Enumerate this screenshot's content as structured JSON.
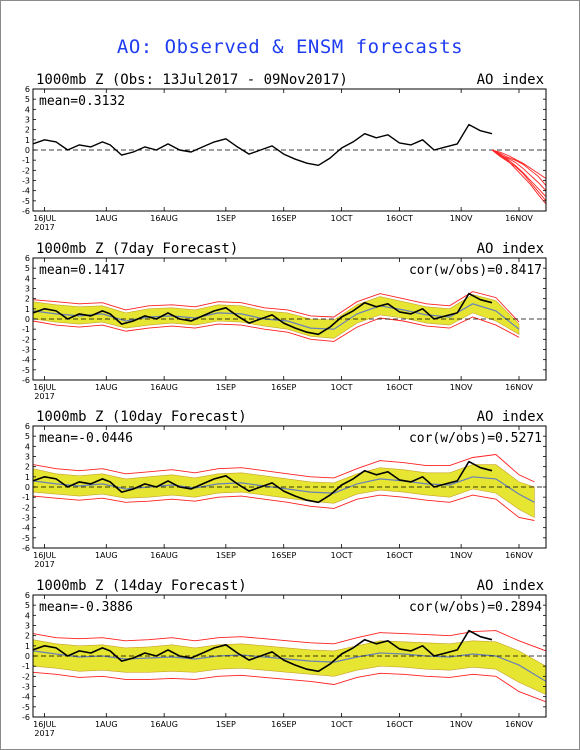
{
  "title": "AO: Observed & ENSM forecasts",
  "colors": {
    "title": "#1f3df0",
    "observed": "#000000",
    "ensemble_member": "#ff2020",
    "ensemble_mean": "#6a80b8",
    "spread": "#e4e428",
    "spread_outline": "#c8a020",
    "zero_line": "#000000"
  },
  "panels": [
    {
      "title": "1000mb Z (Obs: 13Jul2017 - 09Nov2017)",
      "index_label": "AO index",
      "mean_label": "mean=0.3132",
      "cor_label": ""
    },
    {
      "title": "1000mb Z (7day Forecast)",
      "index_label": "AO index",
      "mean_label": "mean=0.1417",
      "cor_label": "cor(w/obs)=0.8417"
    },
    {
      "title": "1000mb Z (10day Forecast)",
      "index_label": "AO index",
      "mean_label": "mean=-0.0446",
      "cor_label": "cor(w/obs)=0.5271"
    },
    {
      "title": "1000mb Z (14day Forecast)",
      "index_label": "AO index",
      "mean_label": "mean=-0.3886",
      "cor_label": "cor(w/obs)=0.2894"
    }
  ],
  "chart_data": {
    "type": "line",
    "ylim": [
      -6,
      6
    ],
    "yticks": [
      "6",
      "5",
      "4",
      "3",
      "2",
      "1",
      "0",
      "-1",
      "-2",
      "-3",
      "-4",
      "-5",
      "-6"
    ],
    "x_tick_labels": [
      "16JUL",
      "1AUG",
      "16AUG",
      "1SEP",
      "16SEP",
      "1OCT",
      "16OCT",
      "1NOV",
      "16NOV"
    ],
    "x_year_label": "2017",
    "grid": false,
    "zero_line": true,
    "x_start": "2017-07-13",
    "x_end": "2017-11-23",
    "observed": {
      "x": [
        "2017-07-13",
        "2017-07-16",
        "2017-07-19",
        "2017-07-22",
        "2017-07-25",
        "2017-07-28",
        "2017-07-31",
        "2017-08-02",
        "2017-08-05",
        "2017-08-08",
        "2017-08-11",
        "2017-08-14",
        "2017-08-17",
        "2017-08-20",
        "2017-08-23",
        "2017-08-26",
        "2017-08-29",
        "2017-09-01",
        "2017-09-04",
        "2017-09-07",
        "2017-09-10",
        "2017-09-13",
        "2017-09-16",
        "2017-09-19",
        "2017-09-22",
        "2017-09-25",
        "2017-09-28",
        "2017-10-01",
        "2017-10-04",
        "2017-10-07",
        "2017-10-10",
        "2017-10-13",
        "2017-10-16",
        "2017-10-19",
        "2017-10-22",
        "2017-10-25",
        "2017-10-28",
        "2017-10-31",
        "2017-11-03",
        "2017-11-06",
        "2017-11-09"
      ],
      "y": [
        0.6,
        1.0,
        0.8,
        0.0,
        0.5,
        0.3,
        0.8,
        0.5,
        -0.5,
        -0.2,
        0.3,
        0.0,
        0.6,
        0.0,
        -0.2,
        0.3,
        0.8,
        1.1,
        0.3,
        -0.4,
        0.0,
        0.4,
        -0.4,
        -0.9,
        -1.3,
        -1.5,
        -0.8,
        0.2,
        0.8,
        1.6,
        1.2,
        1.5,
        0.7,
        0.5,
        1.0,
        0.0,
        0.3,
        0.6,
        2.5,
        1.9,
        1.6
      ]
    },
    "obs_forecast_members": {
      "x": [
        "2017-11-09",
        "2017-11-11",
        "2017-11-13",
        "2017-11-15",
        "2017-11-17",
        "2017-11-19",
        "2017-11-21",
        "2017-11-23"
      ],
      "series": [
        {
          "values": [
            0.0,
            -0.5,
            -0.8,
            -1.2,
            -1.8,
            -2.5,
            -3.2,
            -4.0
          ]
        },
        {
          "values": [
            0.0,
            -0.3,
            -0.7,
            -1.0,
            -1.4,
            -2.0,
            -2.6,
            -3.5
          ]
        },
        {
          "values": [
            0.0,
            -0.4,
            -0.9,
            -1.5,
            -2.2,
            -3.0,
            -3.8,
            -4.6
          ]
        },
        {
          "values": [
            0.0,
            -0.6,
            -1.1,
            -1.6,
            -2.3,
            -3.2,
            -4.1,
            -5.0
          ]
        },
        {
          "values": [
            0.0,
            -0.2,
            -0.5,
            -0.9,
            -1.3,
            -1.8,
            -2.3,
            -2.8
          ]
        },
        {
          "values": [
            0.0,
            -0.5,
            -1.0,
            -1.8,
            -2.6,
            -3.4,
            -4.4,
            -5.3
          ]
        }
      ]
    },
    "forecasts": [
      {
        "lead": "7day",
        "x": [
          "2017-07-13",
          "2017-07-19",
          "2017-07-25",
          "2017-07-31",
          "2017-08-06",
          "2017-08-12",
          "2017-08-18",
          "2017-08-24",
          "2017-08-30",
          "2017-09-05",
          "2017-09-11",
          "2017-09-17",
          "2017-09-23",
          "2017-09-29",
          "2017-10-05",
          "2017-10-11",
          "2017-10-17",
          "2017-10-23",
          "2017-10-29",
          "2017-11-04",
          "2017-11-10",
          "2017-11-16"
        ],
        "mean": [
          0.8,
          0.5,
          0.3,
          0.5,
          -0.2,
          0.2,
          0.3,
          0.1,
          0.6,
          0.5,
          0.0,
          -0.2,
          -0.9,
          -1.0,
          0.5,
          1.3,
          0.9,
          0.4,
          0.2,
          1.5,
          0.8,
          -1.0
        ],
        "lower": [
          0.0,
          -0.3,
          -0.5,
          -0.3,
          -0.9,
          -0.6,
          -0.4,
          -0.6,
          -0.2,
          -0.3,
          -0.7,
          -1.0,
          -1.7,
          -1.9,
          -0.4,
          0.4,
          0.1,
          -0.4,
          -0.6,
          0.6,
          -0.2,
          -1.5
        ],
        "upper": [
          1.7,
          1.4,
          1.2,
          1.3,
          0.6,
          1.0,
          1.1,
          0.9,
          1.4,
          1.3,
          0.8,
          0.6,
          0.0,
          -0.1,
          1.4,
          2.2,
          1.7,
          1.2,
          1.0,
          2.4,
          1.8,
          -0.5
        ],
        "red_lower": [
          -0.2,
          -0.6,
          -0.8,
          -0.6,
          -1.2,
          -0.9,
          -0.7,
          -0.9,
          -0.5,
          -0.6,
          -1.0,
          -1.3,
          -2.0,
          -2.2,
          -0.8,
          0.1,
          -0.2,
          -0.7,
          -0.9,
          0.2,
          -0.6,
          -1.8
        ],
        "red_upper": [
          1.9,
          1.7,
          1.5,
          1.6,
          0.9,
          1.3,
          1.4,
          1.2,
          1.7,
          1.6,
          1.1,
          0.9,
          0.3,
          0.2,
          1.7,
          2.5,
          2.0,
          1.5,
          1.3,
          2.7,
          2.1,
          -0.3
        ]
      },
      {
        "lead": "10day",
        "x": [
          "2017-07-13",
          "2017-07-19",
          "2017-07-25",
          "2017-07-31",
          "2017-08-06",
          "2017-08-12",
          "2017-08-18",
          "2017-08-24",
          "2017-08-30",
          "2017-09-05",
          "2017-09-11",
          "2017-09-17",
          "2017-09-23",
          "2017-09-29",
          "2017-10-05",
          "2017-10-11",
          "2017-10-17",
          "2017-10-23",
          "2017-10-29",
          "2017-11-04",
          "2017-11-10",
          "2017-11-16",
          "2017-11-20"
        ],
        "mean": [
          0.6,
          0.3,
          0.1,
          0.3,
          -0.2,
          0.0,
          0.2,
          -0.1,
          0.3,
          0.4,
          0.1,
          -0.2,
          -0.5,
          -0.6,
          0.3,
          0.8,
          0.6,
          0.3,
          0.2,
          1.0,
          0.8,
          -0.7,
          -1.5
        ],
        "lower": [
          -0.5,
          -0.7,
          -0.9,
          -0.7,
          -1.1,
          -1.0,
          -0.8,
          -1.0,
          -0.6,
          -0.5,
          -0.8,
          -1.1,
          -1.4,
          -1.6,
          -0.7,
          -0.3,
          -0.5,
          -0.8,
          -1.0,
          -0.2,
          -0.6,
          -2.2,
          -3.0
        ],
        "upper": [
          1.8,
          1.3,
          1.1,
          1.3,
          0.8,
          1.0,
          1.2,
          0.9,
          1.3,
          1.4,
          1.1,
          0.8,
          0.5,
          0.4,
          1.3,
          1.9,
          1.7,
          1.4,
          1.4,
          2.2,
          2.2,
          0.5,
          0.0
        ],
        "red_lower": [
          -0.9,
          -1.1,
          -1.3,
          -1.1,
          -1.5,
          -1.4,
          -1.2,
          -1.4,
          -1.0,
          -0.9,
          -1.2,
          -1.5,
          -1.9,
          -2.1,
          -1.2,
          -0.8,
          -1.0,
          -1.3,
          -1.5,
          -0.8,
          -1.2,
          -3.0,
          -3.3
        ],
        "red_upper": [
          2.2,
          1.8,
          1.6,
          1.8,
          1.3,
          1.5,
          1.7,
          1.4,
          1.8,
          1.9,
          1.6,
          1.3,
          1.0,
          0.9,
          1.8,
          2.6,
          2.4,
          2.1,
          2.1,
          2.9,
          3.2,
          1.2,
          0.5
        ]
      },
      {
        "lead": "14day",
        "x": [
          "2017-07-13",
          "2017-07-19",
          "2017-07-25",
          "2017-07-31",
          "2017-08-06",
          "2017-08-12",
          "2017-08-18",
          "2017-08-24",
          "2017-08-30",
          "2017-09-05",
          "2017-09-11",
          "2017-09-17",
          "2017-09-23",
          "2017-09-29",
          "2017-10-05",
          "2017-10-11",
          "2017-10-17",
          "2017-10-23",
          "2017-10-29",
          "2017-11-04",
          "2017-11-10",
          "2017-11-16",
          "2017-11-23"
        ],
        "mean": [
          0.5,
          0.2,
          -0.1,
          0.0,
          -0.3,
          -0.2,
          -0.1,
          -0.3,
          0.0,
          0.1,
          -0.1,
          -0.3,
          -0.5,
          -0.6,
          -0.1,
          0.3,
          0.2,
          0.0,
          -0.1,
          0.2,
          0.0,
          -0.9,
          -2.5
        ],
        "lower": [
          -1.0,
          -1.2,
          -1.5,
          -1.4,
          -1.6,
          -1.6,
          -1.5,
          -1.6,
          -1.3,
          -1.2,
          -1.4,
          -1.6,
          -1.8,
          -2.0,
          -1.4,
          -1.0,
          -1.1,
          -1.3,
          -1.4,
          -1.1,
          -1.3,
          -2.6,
          -3.8
        ],
        "upper": [
          1.6,
          1.2,
          1.0,
          1.1,
          0.8,
          0.9,
          1.1,
          0.8,
          1.1,
          1.2,
          1.0,
          0.8,
          0.6,
          0.5,
          1.0,
          1.5,
          1.4,
          1.3,
          1.2,
          1.5,
          1.4,
          0.5,
          -1.0
        ],
        "red_lower": [
          -1.6,
          -1.8,
          -2.1,
          -2.0,
          -2.3,
          -2.3,
          -2.2,
          -2.3,
          -2.0,
          -1.9,
          -2.1,
          -2.3,
          -2.5,
          -2.8,
          -2.1,
          -1.7,
          -1.8,
          -2.0,
          -2.1,
          -1.8,
          -2.0,
          -3.5,
          -4.5
        ],
        "red_upper": [
          2.2,
          1.8,
          1.7,
          1.8,
          1.5,
          1.6,
          1.8,
          1.5,
          1.8,
          1.9,
          1.7,
          1.5,
          1.3,
          1.2,
          1.8,
          2.3,
          2.2,
          2.1,
          2.0,
          2.4,
          2.5,
          1.5,
          0.5
        ]
      }
    ]
  }
}
